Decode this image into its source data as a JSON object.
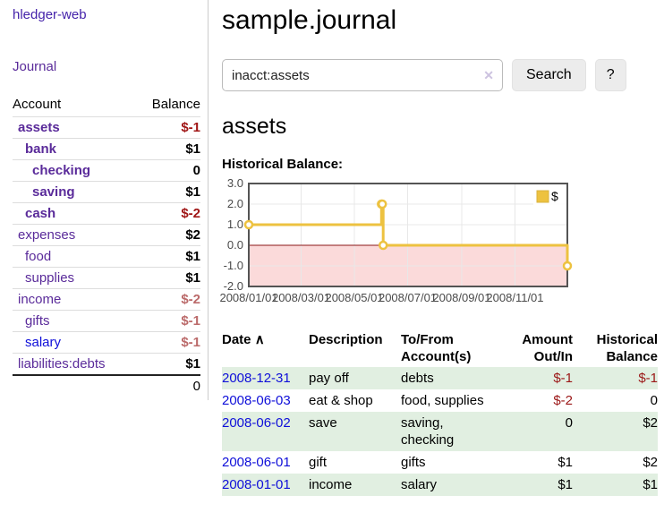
{
  "app": {
    "title": "hledger-web"
  },
  "sidebar": {
    "journal_link": "Journal",
    "accounts": {
      "headers": {
        "account": "Account",
        "balance": "Balance"
      },
      "rows": [
        {
          "name": "assets",
          "depth": 1,
          "bold": true,
          "link_style": "purple",
          "balance": "$-1",
          "balance_style": "neg"
        },
        {
          "name": "bank",
          "depth": 2,
          "bold": true,
          "link_style": "purple",
          "balance": "$1",
          "balance_style": "pos"
        },
        {
          "name": "checking",
          "depth": 3,
          "bold": true,
          "link_style": "purple",
          "balance": "0",
          "balance_style": "pos"
        },
        {
          "name": "saving",
          "depth": 3,
          "bold": true,
          "link_style": "purple",
          "balance": "$1",
          "balance_style": "pos"
        },
        {
          "name": "cash",
          "depth": 2,
          "bold": true,
          "link_style": "purple",
          "balance": "$-2",
          "balance_style": "neg"
        },
        {
          "name": "expenses",
          "depth": 1,
          "bold": false,
          "link_style": "purple",
          "balance": "$2",
          "balance_style": "pos"
        },
        {
          "name": "food",
          "depth": 2,
          "bold": false,
          "link_style": "purple",
          "balance": "$1",
          "balance_style": "pos"
        },
        {
          "name": "supplies",
          "depth": 2,
          "bold": false,
          "link_style": "purple",
          "balance": "$1",
          "balance_style": "pos"
        },
        {
          "name": "income",
          "depth": 1,
          "bold": false,
          "link_style": "purple",
          "balance": "$-2",
          "balance_style": "negpale"
        },
        {
          "name": "gifts",
          "depth": 2,
          "bold": false,
          "link_style": "purple",
          "balance": "$-1",
          "balance_style": "negpale"
        },
        {
          "name": "salary",
          "depth": 2,
          "bold": false,
          "link_style": "blue",
          "balance": "$-1",
          "balance_style": "negpale"
        },
        {
          "name": "liabilities:debts",
          "depth": 1,
          "bold": false,
          "link_style": "purple",
          "balance": "$1",
          "balance_style": "pos"
        }
      ],
      "total": "0"
    }
  },
  "main": {
    "title": "sample.journal",
    "search": {
      "value": "inacct:assets",
      "clear_icon": "✕",
      "search_button": "Search",
      "help_button": "?"
    },
    "account_heading": "assets",
    "chart_label": "Historical Balance:",
    "register": {
      "headers": [
        {
          "label": "Date",
          "align": "left",
          "sorted": true
        },
        {
          "label": "Description",
          "align": "left"
        },
        {
          "label": "To/From Account(s)",
          "align": "left"
        },
        {
          "label": "Amount Out/In",
          "align": "right"
        },
        {
          "label": "Historical Balance",
          "align": "right"
        }
      ],
      "sort_icon": "∧",
      "rows": [
        {
          "date": "2008-12-31",
          "description": "pay off",
          "accounts": "debts",
          "amount": "$-1",
          "amount_negative": true,
          "balance": "$-1",
          "balance_negative": true,
          "shaded": true
        },
        {
          "date": "2008-06-03",
          "description": "eat & shop",
          "accounts": "food, supplies",
          "amount": "$-2",
          "amount_negative": true,
          "balance": "0",
          "balance_negative": false,
          "shaded": false
        },
        {
          "date": "2008-06-02",
          "description": "save",
          "accounts": "saving,\nchecking",
          "amount": "0",
          "amount_negative": false,
          "balance": "$2",
          "balance_negative": false,
          "shaded": true
        },
        {
          "date": "2008-06-01",
          "description": "gift",
          "accounts": "gifts",
          "amount": "$1",
          "amount_negative": false,
          "balance": "$2",
          "balance_negative": false,
          "shaded": false
        },
        {
          "date": "2008-01-01",
          "description": "income",
          "accounts": "salary",
          "amount": "$1",
          "amount_negative": false,
          "balance": "$1",
          "balance_negative": false,
          "shaded": true
        }
      ]
    }
  },
  "chart_data": {
    "type": "line",
    "title": "Historical Balance:",
    "step": true,
    "xlim": [
      "2008-01-01",
      "2008-12-31"
    ],
    "ylim": [
      -2,
      3
    ],
    "grid": true,
    "series": [
      {
        "name": "$",
        "color": "#edc240",
        "points": [
          [
            "2008-01-01",
            1
          ],
          [
            "2008-06-01",
            2
          ],
          [
            "2008-06-02",
            2
          ],
          [
            "2008-06-03",
            0
          ],
          [
            "2008-12-31",
            -1
          ]
        ]
      }
    ],
    "x_ticks": [
      {
        "date": "2008-01-01",
        "label": "2008/01/01"
      },
      {
        "date": "2008-03-01",
        "label": "2008/03/01"
      },
      {
        "date": "2008-05-01",
        "label": "2008/05/01"
      },
      {
        "date": "2008-07-01",
        "label": "2008/07/01"
      },
      {
        "date": "2008-09-01",
        "label": "2008/09/01"
      },
      {
        "date": "2008-11-01",
        "label": "2008/11/01"
      }
    ],
    "y_ticks": [
      {
        "value": 3,
        "label": "3.0"
      },
      {
        "value": 2,
        "label": "2.0"
      },
      {
        "value": 1,
        "label": "1.0"
      },
      {
        "value": 0,
        "label": "0.0"
      },
      {
        "value": -1,
        "label": "-1.0"
      },
      {
        "value": -2,
        "label": "-2.0"
      }
    ],
    "legend": {
      "label": "$",
      "position": "top-right"
    },
    "colors": {
      "negative_region": "#fbdada",
      "zero_line": "#8b1717",
      "gridline": "#e8e8e8",
      "border": "#545454"
    }
  }
}
